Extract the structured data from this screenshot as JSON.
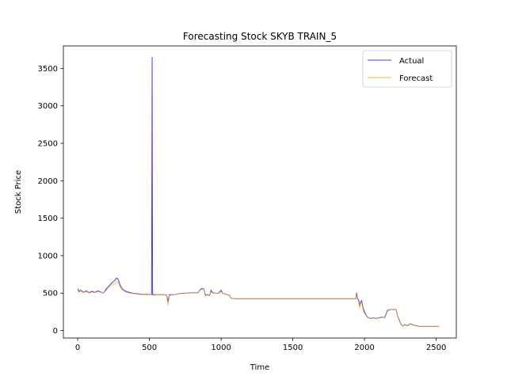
{
  "chart_data": {
    "type": "line",
    "title": "Forecasting Stock SKYB TRAIN_5",
    "xlabel": "Time",
    "ylabel": "Stock Price",
    "xlim": [
      -100,
      2640
    ],
    "ylim": [
      -100,
      3800
    ],
    "xticks": [
      0,
      500,
      1000,
      1500,
      2000,
      2500
    ],
    "yticks": [
      0,
      500,
      1000,
      1500,
      2000,
      2500,
      3000,
      3500
    ],
    "grid": false,
    "legend_position": "top-right",
    "series": [
      {
        "name": "Actual",
        "color": "#0000ff",
        "points": [
          [
            0,
            560
          ],
          [
            10,
            520
          ],
          [
            20,
            540
          ],
          [
            40,
            510
          ],
          [
            60,
            530
          ],
          [
            80,
            505
          ],
          [
            100,
            525
          ],
          [
            120,
            510
          ],
          [
            140,
            530
          ],
          [
            160,
            515
          ],
          [
            180,
            500
          ],
          [
            200,
            560
          ],
          [
            220,
            600
          ],
          [
            240,
            640
          ],
          [
            260,
            670
          ],
          [
            270,
            700
          ],
          [
            280,
            690
          ],
          [
            290,
            640
          ],
          [
            300,
            590
          ],
          [
            310,
            560
          ],
          [
            320,
            540
          ],
          [
            340,
            520
          ],
          [
            360,
            510
          ],
          [
            380,
            500
          ],
          [
            400,
            495
          ],
          [
            420,
            490
          ],
          [
            440,
            485
          ],
          [
            460,
            480
          ],
          [
            480,
            485
          ],
          [
            500,
            480
          ],
          [
            515,
            480
          ],
          [
            519,
            3650
          ],
          [
            522,
            480
          ],
          [
            540,
            480
          ],
          [
            560,
            478
          ],
          [
            580,
            478
          ],
          [
            600,
            480
          ],
          [
            620,
            475
          ],
          [
            630,
            390
          ],
          [
            640,
            480
          ],
          [
            660,
            478
          ],
          [
            680,
            480
          ],
          [
            700,
            490
          ],
          [
            720,
            495
          ],
          [
            760,
            500
          ],
          [
            800,
            505
          ],
          [
            840,
            505
          ],
          [
            860,
            560
          ],
          [
            880,
            555
          ],
          [
            890,
            470
          ],
          [
            900,
            480
          ],
          [
            920,
            470
          ],
          [
            930,
            540
          ],
          [
            940,
            505
          ],
          [
            960,
            500
          ],
          [
            980,
            495
          ],
          [
            1000,
            540
          ],
          [
            1010,
            500
          ],
          [
            1040,
            480
          ],
          [
            1060,
            470
          ],
          [
            1070,
            430
          ],
          [
            1100,
            425
          ],
          [
            1500,
            425
          ],
          [
            1800,
            425
          ],
          [
            1940,
            425
          ],
          [
            1945,
            500
          ],
          [
            1950,
            430
          ],
          [
            1960,
            400
          ],
          [
            1965,
            330
          ],
          [
            1970,
            370
          ],
          [
            1980,
            400
          ],
          [
            1985,
            350
          ],
          [
            1990,
            300
          ],
          [
            2000,
            250
          ],
          [
            2010,
            210
          ],
          [
            2020,
            180
          ],
          [
            2040,
            160
          ],
          [
            2060,
            170
          ],
          [
            2080,
            160
          ],
          [
            2100,
            170
          ],
          [
            2120,
            180
          ],
          [
            2140,
            170
          ],
          [
            2150,
            220
          ],
          [
            2160,
            270
          ],
          [
            2180,
            280
          ],
          [
            2200,
            280
          ],
          [
            2220,
            280
          ],
          [
            2230,
            200
          ],
          [
            2240,
            150
          ],
          [
            2250,
            100
          ],
          [
            2260,
            70
          ],
          [
            2270,
            60
          ],
          [
            2280,
            80
          ],
          [
            2300,
            65
          ],
          [
            2320,
            90
          ],
          [
            2340,
            75
          ],
          [
            2360,
            65
          ],
          [
            2380,
            55
          ],
          [
            2400,
            55
          ],
          [
            2450,
            55
          ],
          [
            2500,
            55
          ],
          [
            2520,
            55
          ]
        ]
      },
      {
        "name": "Forecast",
        "color": "#ffa500",
        "points": [
          [
            0,
            540
          ],
          [
            10,
            510
          ],
          [
            20,
            530
          ],
          [
            40,
            505
          ],
          [
            60,
            520
          ],
          [
            80,
            500
          ],
          [
            100,
            515
          ],
          [
            120,
            505
          ],
          [
            140,
            520
          ],
          [
            160,
            510
          ],
          [
            180,
            500
          ],
          [
            200,
            540
          ],
          [
            220,
            580
          ],
          [
            240,
            610
          ],
          [
            260,
            630
          ],
          [
            270,
            650
          ],
          [
            280,
            640
          ],
          [
            290,
            600
          ],
          [
            300,
            570
          ],
          [
            310,
            545
          ],
          [
            320,
            530
          ],
          [
            340,
            510
          ],
          [
            360,
            500
          ],
          [
            380,
            495
          ],
          [
            400,
            490
          ],
          [
            420,
            485
          ],
          [
            440,
            480
          ],
          [
            460,
            478
          ],
          [
            480,
            480
          ],
          [
            500,
            478
          ],
          [
            515,
            478
          ],
          [
            519,
            480
          ],
          [
            522,
            470
          ],
          [
            540,
            475
          ],
          [
            560,
            478
          ],
          [
            580,
            478
          ],
          [
            600,
            478
          ],
          [
            620,
            470
          ],
          [
            630,
            340
          ],
          [
            640,
            470
          ],
          [
            660,
            475
          ],
          [
            680,
            478
          ],
          [
            700,
            488
          ],
          [
            720,
            492
          ],
          [
            760,
            498
          ],
          [
            800,
            503
          ],
          [
            840,
            503
          ],
          [
            860,
            550
          ],
          [
            880,
            550
          ],
          [
            890,
            460
          ],
          [
            900,
            475
          ],
          [
            920,
            465
          ],
          [
            930,
            520
          ],
          [
            940,
            500
          ],
          [
            960,
            498
          ],
          [
            980,
            493
          ],
          [
            1000,
            520
          ],
          [
            1010,
            498
          ],
          [
            1040,
            478
          ],
          [
            1060,
            468
          ],
          [
            1070,
            428
          ],
          [
            1100,
            425
          ],
          [
            1500,
            425
          ],
          [
            1800,
            425
          ],
          [
            1940,
            425
          ],
          [
            1945,
            470
          ],
          [
            1950,
            420
          ],
          [
            1960,
            380
          ],
          [
            1965,
            300
          ],
          [
            1970,
            350
          ],
          [
            1980,
            370
          ],
          [
            1985,
            320
          ],
          [
            1990,
            260
          ],
          [
            2000,
            230
          ],
          [
            2010,
            200
          ],
          [
            2020,
            175
          ],
          [
            2040,
            158
          ],
          [
            2060,
            165
          ],
          [
            2080,
            158
          ],
          [
            2100,
            165
          ],
          [
            2120,
            175
          ],
          [
            2140,
            168
          ],
          [
            2150,
            205
          ],
          [
            2160,
            260
          ],
          [
            2180,
            278
          ],
          [
            2200,
            278
          ],
          [
            2220,
            278
          ],
          [
            2230,
            190
          ],
          [
            2240,
            140
          ],
          [
            2250,
            95
          ],
          [
            2260,
            68
          ],
          [
            2270,
            58
          ],
          [
            2280,
            75
          ],
          [
            2300,
            62
          ],
          [
            2320,
            85
          ],
          [
            2340,
            72
          ],
          [
            2360,
            62
          ],
          [
            2380,
            55
          ],
          [
            2400,
            55
          ],
          [
            2450,
            55
          ],
          [
            2500,
            55
          ],
          [
            2520,
            55
          ]
        ]
      }
    ]
  }
}
